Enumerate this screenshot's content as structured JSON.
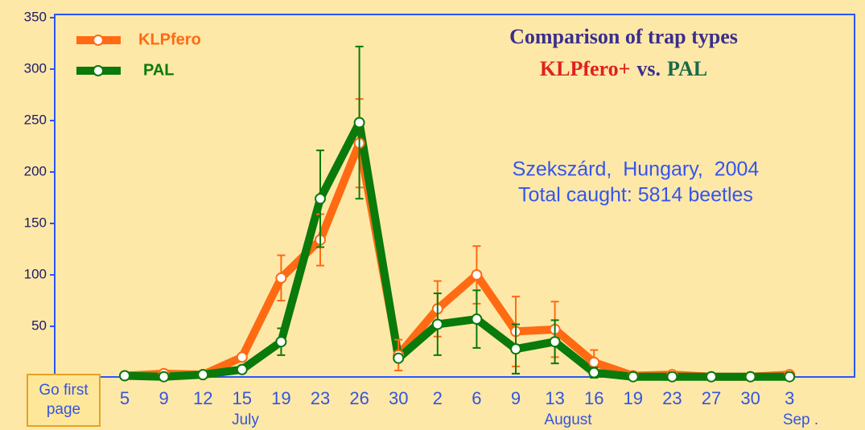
{
  "chart_data": {
    "type": "line",
    "title": "Comparison of trap types",
    "subtitle_parts": [
      "KLPfero+",
      "vs.",
      "PAL"
    ],
    "annotations": [
      "Szekszárd,  Hungary,  2004",
      "Total caught: 5814 beetles"
    ],
    "categories": [
      "5",
      "9",
      "12",
      "15",
      "19",
      "23",
      "26",
      "30",
      "2",
      "6",
      "9",
      "13",
      "16",
      "19",
      "23",
      "27",
      "30",
      "3"
    ],
    "group_labels": [
      "July",
      "August",
      "Sep ."
    ],
    "series": [
      {
        "name": "KLPfero",
        "color": "#ff6a13",
        "values": [
          2,
          4,
          3,
          20,
          97,
          134,
          228,
          22,
          67,
          100,
          45,
          47,
          15,
          2,
          3,
          1,
          1,
          3
        ],
        "errors": [
          0,
          0,
          0,
          0,
          22,
          25,
          43,
          15,
          27,
          28,
          34,
          27,
          12,
          0,
          0,
          0,
          0,
          0
        ]
      },
      {
        "name": "PAL",
        "color": "#0a7a0a",
        "values": [
          2,
          1,
          3,
          8,
          35,
          174,
          248,
          19,
          52,
          57,
          28,
          35,
          5,
          1,
          1,
          1,
          1,
          1
        ],
        "errors": [
          0,
          0,
          0,
          0,
          13,
          47,
          74,
          3,
          30,
          28,
          24,
          21,
          5,
          0,
          0,
          0,
          0,
          0
        ]
      }
    ],
    "ylim": [
      0,
      350
    ],
    "yticks": [
      50,
      100,
      150,
      200,
      250,
      300,
      350
    ],
    "legend": "upper left",
    "button": "Go first page"
  }
}
